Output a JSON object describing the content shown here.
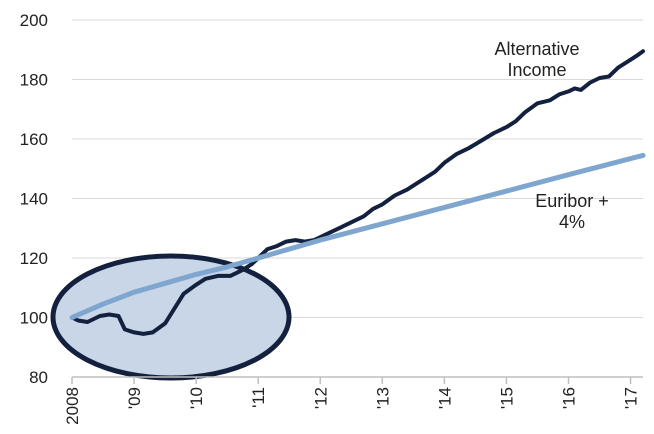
{
  "chart_data": {
    "type": "line",
    "title": "",
    "xlabel": "",
    "ylabel": "",
    "ylim": [
      80,
      200
    ],
    "yticks": [
      80,
      100,
      120,
      140,
      160,
      180,
      200
    ],
    "xlim": [
      2008,
      2017.2
    ],
    "xticks": [
      {
        "x": 2008,
        "label": "2008"
      },
      {
        "x": 2009,
        "label": "'09"
      },
      {
        "x": 2010,
        "label": "'10"
      },
      {
        "x": 2011,
        "label": "'11"
      },
      {
        "x": 2012,
        "label": "'12"
      },
      {
        "x": 2013,
        "label": "'13"
      },
      {
        "x": 2014,
        "label": "'14"
      },
      {
        "x": 2015,
        "label": "'15"
      },
      {
        "x": 2016,
        "label": "'16"
      },
      {
        "x": 2017,
        "label": "'17"
      }
    ],
    "grid": "horizontal",
    "series": [
      {
        "name": "Alternative Income",
        "color": "#13213f",
        "points": [
          [
            2008.0,
            100
          ],
          [
            2008.1,
            99
          ],
          [
            2008.25,
            98.5
          ],
          [
            2008.45,
            100.5
          ],
          [
            2008.6,
            101
          ],
          [
            2008.75,
            100.5
          ],
          [
            2008.85,
            96
          ],
          [
            2009.0,
            95
          ],
          [
            2009.15,
            94.5
          ],
          [
            2009.3,
            95
          ],
          [
            2009.5,
            98
          ],
          [
            2009.65,
            103
          ],
          [
            2009.8,
            108
          ],
          [
            2010.0,
            111
          ],
          [
            2010.15,
            113
          ],
          [
            2010.35,
            114
          ],
          [
            2010.55,
            114
          ],
          [
            2010.75,
            116
          ],
          [
            2010.9,
            118
          ],
          [
            2011.0,
            120
          ],
          [
            2011.15,
            123
          ],
          [
            2011.3,
            124
          ],
          [
            2011.45,
            125.5
          ],
          [
            2011.6,
            126
          ],
          [
            2011.75,
            125.5
          ],
          [
            2011.9,
            126
          ],
          [
            2012.0,
            127
          ],
          [
            2012.15,
            128.5
          ],
          [
            2012.3,
            130
          ],
          [
            2012.5,
            132
          ],
          [
            2012.7,
            134
          ],
          [
            2012.85,
            136.5
          ],
          [
            2013.0,
            138
          ],
          [
            2013.2,
            141
          ],
          [
            2013.4,
            143
          ],
          [
            2013.55,
            145
          ],
          [
            2013.7,
            147
          ],
          [
            2013.85,
            149
          ],
          [
            2014.0,
            152
          ],
          [
            2014.2,
            155
          ],
          [
            2014.4,
            157
          ],
          [
            2014.6,
            159.5
          ],
          [
            2014.8,
            162
          ],
          [
            2015.0,
            164
          ],
          [
            2015.15,
            166
          ],
          [
            2015.3,
            169
          ],
          [
            2015.5,
            172
          ],
          [
            2015.7,
            173
          ],
          [
            2015.85,
            175
          ],
          [
            2016.0,
            176
          ],
          [
            2016.1,
            177
          ],
          [
            2016.2,
            176.5
          ],
          [
            2016.35,
            179
          ],
          [
            2016.5,
            180.5
          ],
          [
            2016.65,
            181
          ],
          [
            2016.8,
            184
          ],
          [
            2016.95,
            186
          ],
          [
            2017.1,
            188
          ],
          [
            2017.2,
            189.5
          ]
        ]
      },
      {
        "name": "Euribor + 4%",
        "color": "#7fa6cf",
        "points": [
          [
            2008.0,
            100
          ],
          [
            2008.5,
            104.5
          ],
          [
            2009.0,
            108.5
          ],
          [
            2009.5,
            111.5
          ],
          [
            2010.0,
            114.5
          ],
          [
            2010.5,
            117
          ],
          [
            2011.0,
            120
          ],
          [
            2012.0,
            126
          ],
          [
            2013.0,
            131.5
          ],
          [
            2014.0,
            137
          ],
          [
            2015.0,
            142.5
          ],
          [
            2016.0,
            148
          ],
          [
            2017.2,
            154.5
          ]
        ]
      }
    ],
    "annotations": [
      {
        "lines": [
          "Alternative",
          "Income"
        ],
        "series": "Alternative Income"
      },
      {
        "lines": [
          "Euribor +",
          "4%"
        ],
        "series": "Euribor + 4%"
      }
    ],
    "highlight_color": "#c8d6e8",
    "highlight_border_color": "#13213f"
  }
}
